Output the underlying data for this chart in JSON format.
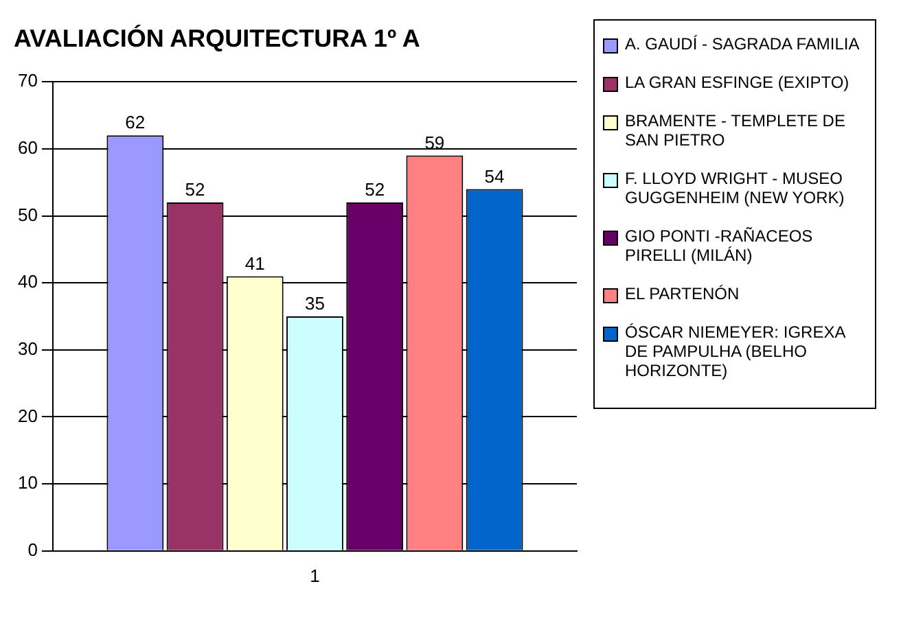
{
  "chart_data": {
    "type": "bar",
    "title": "AVALIACIÓN ARQUITECTURA 1º A",
    "categories": [
      "1"
    ],
    "series": [
      {
        "name": "A. GAUDÍ - SAGRADA FAMILIA",
        "color": "#9999ff",
        "values": [
          62
        ]
      },
      {
        "name": "LA GRAN ESFINGE (EXIPTO)",
        "color": "#993366",
        "values": [
          52
        ]
      },
      {
        "name": "BRAMENTE - TEMPLETE DE SAN PIETRO",
        "color": "#ffffcc",
        "values": [
          41
        ]
      },
      {
        "name": "F. LLOYD WRIGHT - MUSEO GUGGENHEIM (NEW YORK)",
        "color": "#ccffff",
        "values": [
          35
        ]
      },
      {
        "name": "GIO PONTI -RAÑACEOS PIRELLI (MILÁN)",
        "color": "#660066",
        "values": [
          52
        ]
      },
      {
        "name": "EL PARTENÓN",
        "color": "#ff8080",
        "values": [
          59
        ]
      },
      {
        "name": "ÓSCAR NIEMEYER: IGREXA DE PAMPULHA (BELHO HORIZONTE)",
        "color": "#0066cc",
        "values": [
          54
        ]
      }
    ],
    "ylim": [
      0,
      70
    ],
    "yticks": [
      0,
      10,
      20,
      30,
      40,
      50,
      60,
      70
    ],
    "grid": "y",
    "legend": "right",
    "data_labels": true
  }
}
